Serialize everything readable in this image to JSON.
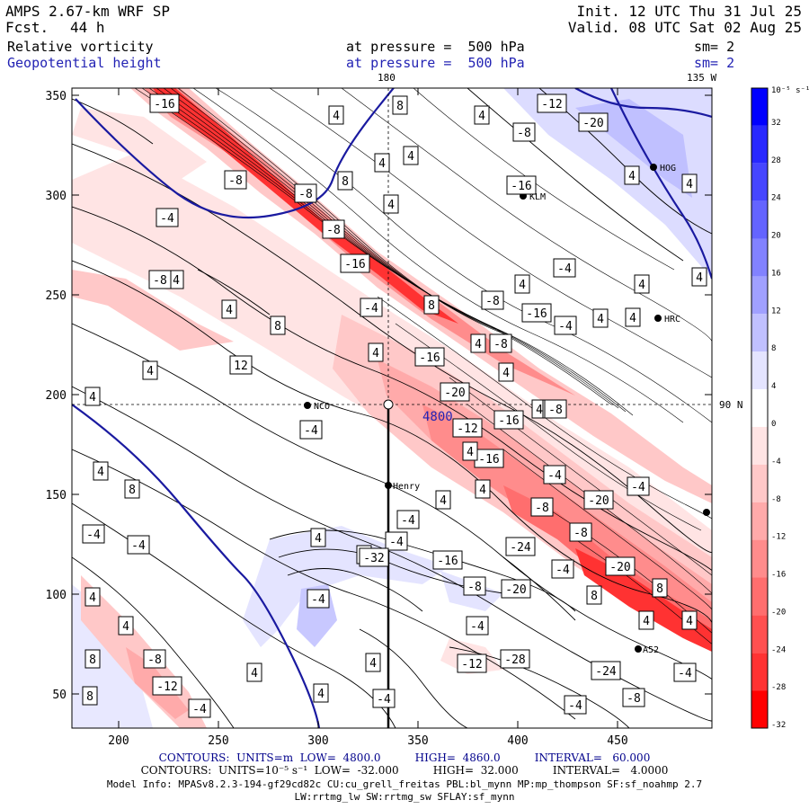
{
  "header": {
    "model": "AMPS 2.67-km WRF SP",
    "fcst_label": "Fcst.",
    "fcst_value": "44 h",
    "init": "Init. 12 UTC Thu 31 Jul 25",
    "valid": "Valid. 08 UTC Sat 02 Aug 25",
    "field1": "Relative vorticity",
    "field2": "Geopotential height",
    "level1": "at pressure =  500 hPa",
    "level2": "at pressure =  500 hPa",
    "sm1": "sm= 2",
    "sm2": "sm= 2"
  },
  "map": {
    "lon_top_label": "180",
    "lon_tr_label": "135 W",
    "lat_right_label": "90 N",
    "contour_height_label": "4800",
    "x_ticks": [
      "200",
      "250",
      "300",
      "350",
      "400",
      "450"
    ],
    "y_ticks": [
      "350",
      "300",
      "250",
      "200",
      "150",
      "100",
      "50"
    ],
    "stations": [
      {
        "name": "KLM"
      },
      {
        "name": "HRC"
      },
      {
        "name": "NCO"
      },
      {
        "name": "Henry"
      },
      {
        "name": "HOG"
      },
      {
        "name": "A52"
      }
    ],
    "labels": [
      "-16",
      "-8",
      "-4",
      "4",
      "4",
      "8",
      "12",
      "4",
      "4",
      "-8",
      "4",
      "8",
      "4",
      "8",
      "4",
      "4",
      "-8",
      "-8",
      "-16",
      "-4",
      "4",
      "4",
      "4",
      "-8",
      "-12",
      "-16",
      "-20",
      "4",
      "4",
      "-4",
      "4",
      "4",
      "4",
      "4",
      "-8",
      "-16",
      "-4",
      "4",
      "4",
      "-8",
      "-16",
      "-20",
      "8",
      "4",
      "4",
      "-4",
      "-4",
      "4",
      "8",
      "-4",
      "-4",
      "4",
      "-4",
      "4",
      "-16",
      "-8",
      "-20",
      "-8",
      "-12",
      "-16",
      "-16",
      "4",
      "4",
      "-8",
      "-4",
      "-4",
      "-20",
      "-8",
      "-24",
      "-4",
      "-20",
      "8",
      "8",
      "4",
      "4",
      "-4",
      "-32",
      "-4",
      "-28",
      "-12",
      "-24",
      "-4",
      "-8",
      "-4",
      "4",
      "4",
      "-8",
      "-12",
      "-4",
      "8",
      "8",
      "4",
      "4",
      "4",
      "-4",
      "4",
      "-4"
    ]
  },
  "colorbar": {
    "unit": "10⁻⁵ s⁻¹",
    "ticks": [
      "32",
      "28",
      "24",
      "20",
      "16",
      "12",
      "8",
      "4",
      "0",
      "-4",
      "-8",
      "-12",
      "-16",
      "-20",
      "-24",
      "-28",
      "-32"
    ],
    "colors": [
      "#0000ff",
      "#2828ff",
      "#4646ff",
      "#6464ff",
      "#8282ff",
      "#a0a0ff",
      "#c0c0ff",
      "#e4e4ff",
      "#ffffff",
      "#ffe4e4",
      "#ffc8c8",
      "#ffaaaa",
      "#ff8c8c",
      "#ff6e6e",
      "#ff5050",
      "#ff3232",
      "#ff0000"
    ]
  },
  "footer": {
    "contours1": "CONTOURS:  UNITS=m  LOW=  4800.0          HIGH=  4860.0          INTERVAL=   60.000",
    "contours2": "CONTOURS:  UNITS=10⁻⁵ s⁻¹  LOW=  -32.000          HIGH=  32.000          INTERVAL=   4.0000",
    "model_info": "Model Info: MPASv8.2.3-194-gf29cd82c CU:cu_grell_freitas PBL:bl_mynn MP:mp_thompson SF:sf_noahmp 2.7",
    "model_info2": "LW:rrtmg_lw SW:rrtmg_sw SFLAY:sf_mynn"
  }
}
